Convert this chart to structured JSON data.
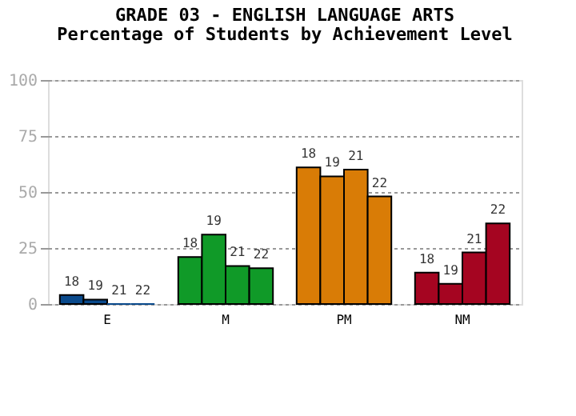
{
  "chart_data": {
    "type": "bar",
    "title": "GRADE 03 - ENGLISH LANGUAGE ARTS",
    "subtitle": "Percentage of Students by Achievement Level",
    "categories": [
      "E",
      "M",
      "PM",
      "NM"
    ],
    "series": [
      {
        "name": "18",
        "colors": [
          "#0a4a8c",
          "#109a28",
          "#d97c06",
          "#a50521"
        ],
        "values": [
          4,
          21,
          61,
          14
        ]
      },
      {
        "name": "19",
        "colors": [
          "#0a4a8c",
          "#109a28",
          "#d97c06",
          "#a50521"
        ],
        "values": [
          2,
          31,
          57,
          9
        ]
      },
      {
        "name": "21",
        "colors": [
          "#0a4a8c",
          "#109a28",
          "#d97c06",
          "#a50521"
        ],
        "values": [
          0,
          17,
          60,
          23
        ]
      },
      {
        "name": "22",
        "colors": [
          "#0a4a8c",
          "#109a28",
          "#d97c06",
          "#a50521"
        ],
        "values": [
          0,
          16,
          48,
          36
        ]
      }
    ],
    "ylim": [
      0,
      100
    ],
    "yticks": [
      0,
      25,
      50,
      75,
      100
    ],
    "grid": "y"
  }
}
